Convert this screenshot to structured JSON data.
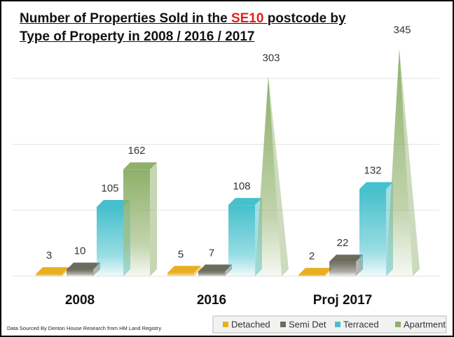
{
  "chart_data": {
    "type": "bar3d",
    "title_parts": [
      "Number of Properties Sold in the",
      "SE10",
      "postcode by",
      "Type of Property in 2008 / 2016 / 2017"
    ],
    "categories": [
      "2008",
      "2016",
      "Proj 2017"
    ],
    "series": [
      {
        "name": "Detached",
        "color": "#e8b020",
        "values": [
          3,
          5,
          2
        ]
      },
      {
        "name": "Semi Det",
        "color": "#6b6b5e",
        "values": [
          10,
          7,
          22
        ]
      },
      {
        "name": "Terraced",
        "color": "#45c0cc",
        "values": [
          105,
          108,
          132
        ]
      },
      {
        "name": "Apartment",
        "color": "#8fb06a",
        "values": [
          162,
          303,
          345
        ]
      }
    ],
    "ylim": [
      0,
      350
    ],
    "yticks": [
      0,
      100,
      200,
      300
    ],
    "grid": true,
    "source": "Data Sourced By Denton House Research from HM Land Registry"
  }
}
